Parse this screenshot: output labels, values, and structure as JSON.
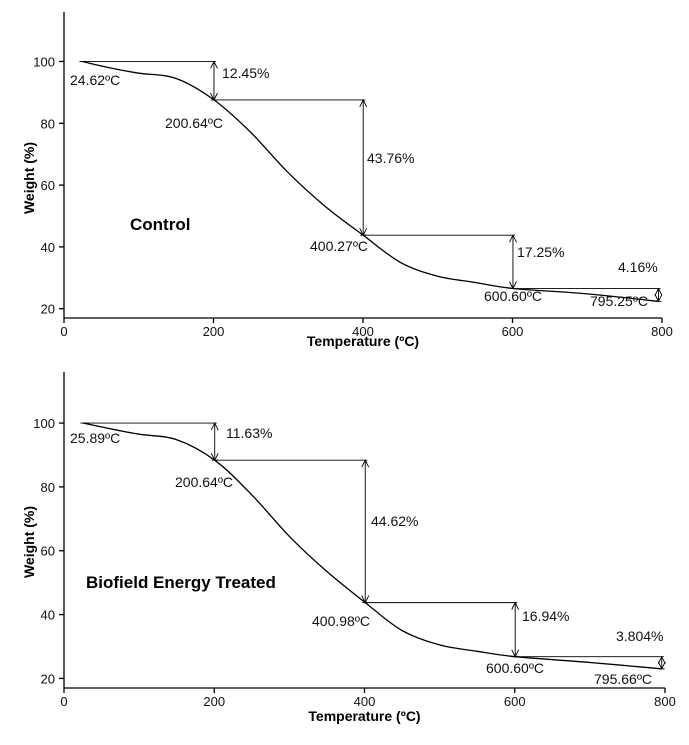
{
  "chart_data": [
    {
      "type": "line",
      "title": "Control",
      "xlabel": "Temperature (ºC)",
      "ylabel": "Weight (%)",
      "xlim": [
        0,
        800
      ],
      "ylim": [
        17,
        116
      ],
      "xticks": [
        0,
        200,
        400,
        600,
        800
      ],
      "yticks": [
        20,
        40,
        60,
        80,
        100
      ],
      "grid": false,
      "series": [
        {
          "x": [
            24.62,
            60,
            100,
            150,
            200.64,
            250,
            300,
            350,
            400.27,
            450,
            500,
            550,
            600.6,
            700,
            795.25
          ],
          "values": [
            100,
            98,
            96.2,
            94.5,
            87.55,
            77,
            64,
            53,
            43.79,
            35,
            30.5,
            28.5,
            26.54,
            24.8,
            22.38
          ]
        }
      ],
      "annotations": [
        {
          "label": "24.62ºC",
          "x": 24.62,
          "y": 100
        },
        {
          "label": "200.64ºC",
          "x": 200.64,
          "y": 87.55
        },
        {
          "label": "400.27ºC",
          "x": 400.27,
          "y": 43.79
        },
        {
          "label": "600.60ºC",
          "x": 600.6,
          "y": 26.54
        },
        {
          "label": "795.25ºC",
          "x": 795.25,
          "y": 22.38
        }
      ],
      "steps": [
        {
          "label": "12.45%",
          "x": 200.64,
          "from": 100,
          "to": 87.55
        },
        {
          "label": "43.76%",
          "x": 400.27,
          "from": 87.55,
          "to": 43.79
        },
        {
          "label": "17.25%",
          "x": 600.6,
          "from": 43.79,
          "to": 26.54
        },
        {
          "label": "4.16%",
          "x": 795.25,
          "from": 26.54,
          "to": 22.38
        }
      ]
    },
    {
      "type": "line",
      "title": "Biofield Energy Treated",
      "xlabel": "Temperature (ºC)",
      "ylabel": "Weight (%)",
      "xlim": [
        0,
        800
      ],
      "ylim": [
        17,
        116
      ],
      "xticks": [
        0,
        200,
        400,
        600,
        800
      ],
      "yticks": [
        20,
        40,
        60,
        80,
        100
      ],
      "grid": false,
      "series": [
        {
          "x": [
            25.89,
            60,
            100,
            150,
            200.64,
            250,
            300,
            350,
            400.98,
            450,
            500,
            550,
            600.6,
            700,
            795.66
          ],
          "values": [
            100,
            98.3,
            96.5,
            94.8,
            88.37,
            77.5,
            64.5,
            53.5,
            43.75,
            35,
            30.5,
            28.5,
            26.81,
            25,
            23.0
          ]
        }
      ],
      "annotations": [
        {
          "label": "25.89ºC",
          "x": 25.89,
          "y": 100
        },
        {
          "label": "200.64ºC",
          "x": 200.64,
          "y": 88.37
        },
        {
          "label": "400.98ºC",
          "x": 400.98,
          "y": 43.75
        },
        {
          "label": "600.60ºC",
          "x": 600.6,
          "y": 26.81
        },
        {
          "label": "795.66ºC",
          "x": 795.66,
          "y": 23.0
        }
      ],
      "steps": [
        {
          "label": "11.63%",
          "x": 200.64,
          "from": 100,
          "to": 88.37
        },
        {
          "label": "44.62%",
          "x": 400.98,
          "from": 88.37,
          "to": 43.75
        },
        {
          "label": "16.94%",
          "x": 600.6,
          "from": 43.75,
          "to": 26.81
        },
        {
          "label": "3.804%",
          "x": 795.66,
          "from": 26.81,
          "to": 23.0
        }
      ]
    }
  ]
}
